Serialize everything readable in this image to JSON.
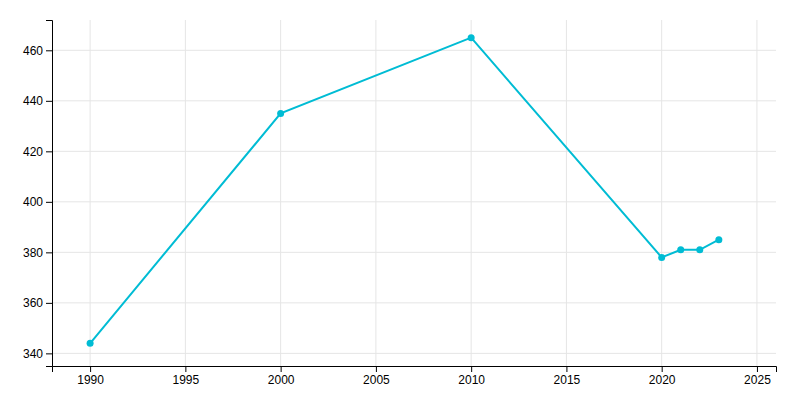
{
  "chart_data": {
    "type": "line",
    "x": [
      1990,
      2000,
      2010,
      2020,
      2021,
      2022,
      2023
    ],
    "values": [
      344,
      435,
      465,
      378,
      381,
      381,
      385
    ],
    "color": "#00BCD4",
    "marker": "circle",
    "xlim": [
      1988,
      2026
    ],
    "ylim": [
      335,
      472
    ],
    "xticks": [
      1990,
      1995,
      2000,
      2005,
      2010,
      2015,
      2020,
      2025
    ],
    "yticks": [
      340,
      360,
      380,
      400,
      420,
      440,
      460
    ],
    "grid": true
  }
}
